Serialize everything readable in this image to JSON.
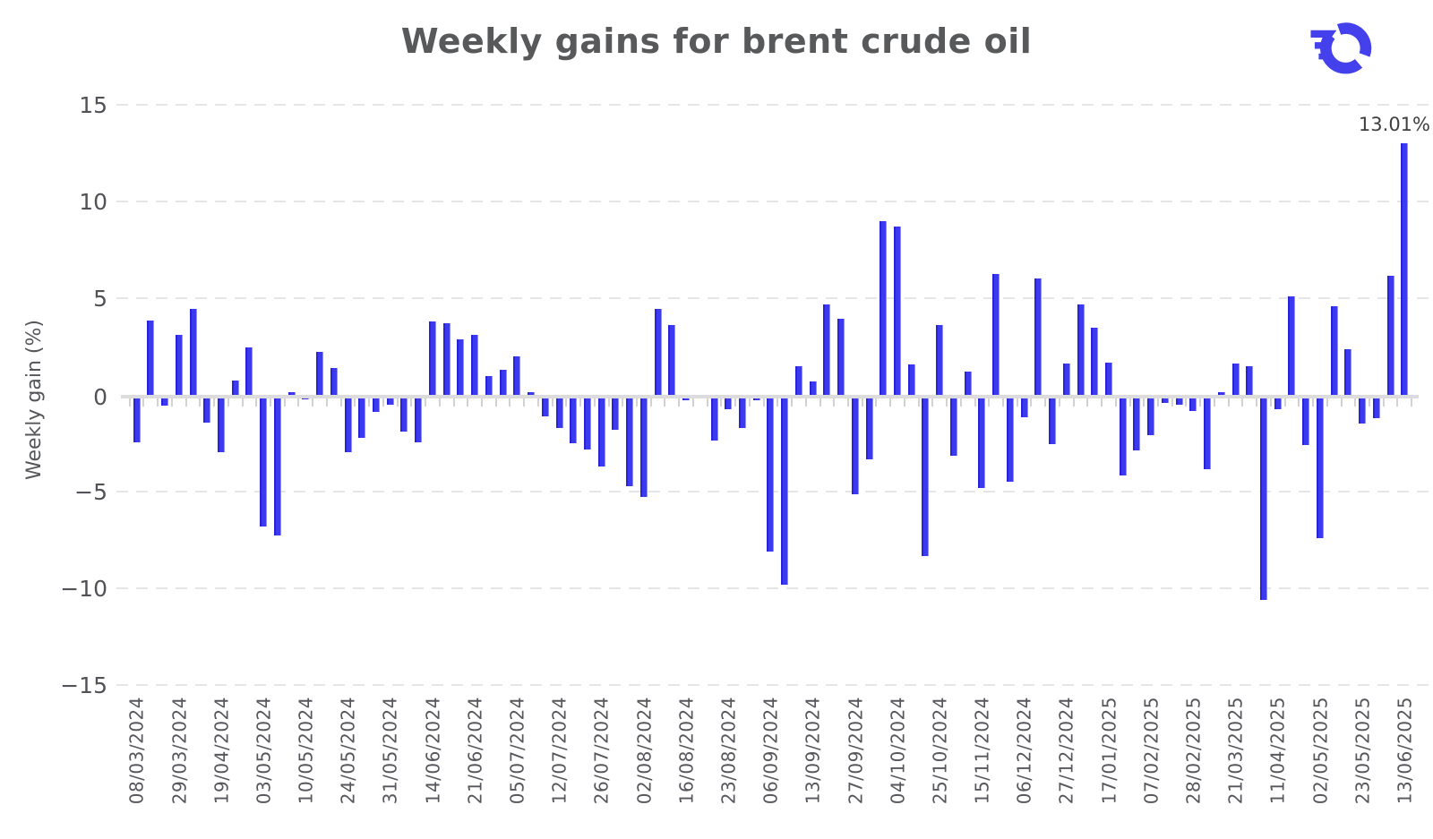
{
  "header": {
    "title": "Weekly gains for brent crude oil",
    "logo": "oilprice-wheel-logo"
  },
  "colors": {
    "bar": "#3c3af1",
    "bar_edge_dark": "#2a23d6",
    "bar_edge_light": "#8f8ff4",
    "logo_blue": "#4440ec",
    "title_text": "#58595b",
    "axis_text": "#56565c",
    "gridline": "#e5e5e7",
    "axis_line": "#dcdcde",
    "background": "#ffffff"
  },
  "chart_data": {
    "type": "bar",
    "title": "Weekly gains for brent crude oil",
    "xlabel": "",
    "ylabel": "Weekly gain (%)",
    "ylim": [
      -15,
      15
    ],
    "yticks": [
      15,
      10,
      5,
      0,
      -5,
      -10,
      -15
    ],
    "grid": "horizontal-dashed",
    "legend": "none",
    "x_label_every_n_bars": 3,
    "x_tick_labels": [
      "08/03/2024",
      "29/03/2024",
      "19/04/2024",
      "03/05/2024",
      "10/05/2024",
      "24/05/2024",
      "31/05/2024",
      "14/06/2024",
      "21/06/2024",
      "05/07/2024",
      "12/07/2024",
      "26/07/2024",
      "02/08/2024",
      "16/08/2024",
      "23/08/2024",
      "06/09/2024",
      "13/09/2024",
      "27/09/2024",
      "04/10/2024",
      "25/10/2024",
      "15/11/2024",
      "06/12/2024",
      "27/12/2024",
      "17/01/2025",
      "07/02/2025",
      "28/02/2025",
      "21/03/2025",
      "11/04/2025",
      "02/05/2025",
      "23/05/2025",
      "13/06/2025"
    ],
    "values": [
      -2.45,
      3.85,
      -0.55,
      3.1,
      4.43,
      -1.45,
      -2.95,
      0.75,
      2.45,
      -6.8,
      -7.25,
      0.15,
      -0.25,
      2.2,
      1.4,
      -2.95,
      -2.2,
      -0.9,
      -0.5,
      -1.9,
      -2.45,
      3.8,
      3.7,
      2.85,
      3.1,
      0.95,
      1.3,
      2.0,
      0.13,
      -1.1,
      -1.7,
      -2.5,
      -2.8,
      -3.7,
      -1.8,
      -4.7,
      -5.25,
      4.45,
      3.6,
      -0.3,
      0.0,
      -2.35,
      -0.75,
      -1.7,
      -0.3,
      -8.1,
      -9.8,
      1.5,
      0.7,
      4.65,
      3.95,
      -5.15,
      -3.35,
      8.95,
      8.7,
      1.55,
      -8.3,
      3.6,
      -3.15,
      1.2,
      -4.8,
      6.25,
      -4.5,
      -1.15,
      6.0,
      -2.55,
      1.6,
      4.65,
      3.45,
      1.65,
      -4.15,
      -2.85,
      -2.1,
      -0.4,
      -0.5,
      -0.85,
      -3.85,
      0.15,
      1.6,
      1.5,
      -10.6,
      -0.75,
      5.1,
      -2.6,
      -7.4,
      4.6,
      2.35,
      -1.5,
      -1.2,
      6.15,
      13.01
    ],
    "annotation": {
      "text": "13.01%",
      "bar_index": 90
    }
  }
}
